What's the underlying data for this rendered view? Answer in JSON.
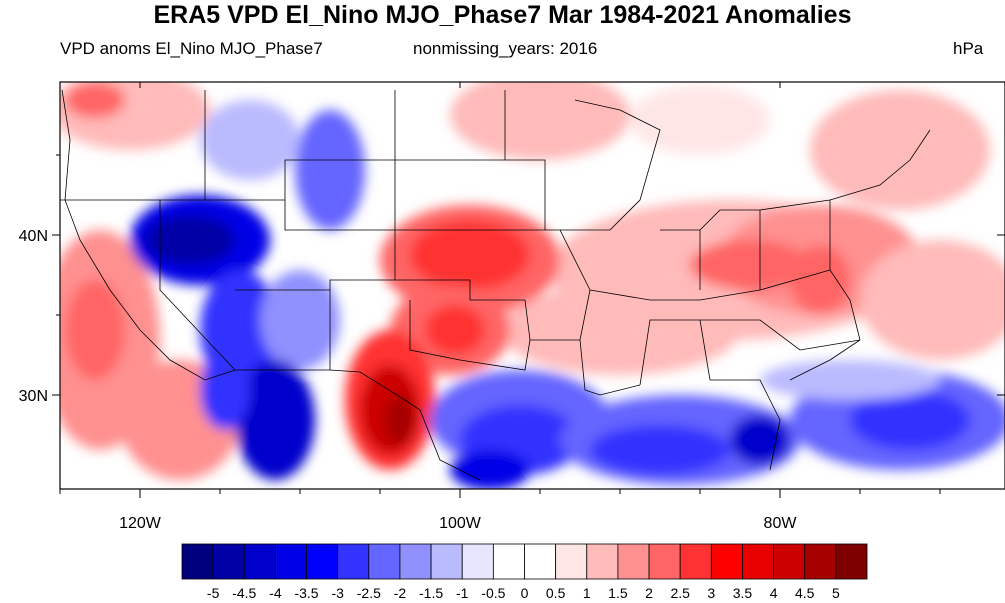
{
  "title": "ERA5 VPD El_Nino MJO_Phase7 Mar 1984-2021 Anomalies",
  "left_subtitle": "VPD anoms El_Nino MJO_Phase7",
  "center_subtitle": "nonmissing_years: 2016",
  "units": "hPa",
  "lat_labels": [
    "40N",
    "30N"
  ],
  "lon_labels": [
    "120W",
    "100W",
    "80W"
  ],
  "colorbar": {
    "labels": [
      "-5",
      "-4.5",
      "-4",
      "-3.5",
      "-3",
      "-2.5",
      "-2",
      "-1.5",
      "-1",
      "-0.5",
      "0",
      "0.5",
      "1",
      "1.5",
      "2",
      "2.5",
      "3",
      "3.5",
      "4",
      "4.5",
      "5"
    ],
    "colors": [
      "#00007f",
      "#0000a6",
      "#0000cc",
      "#0000e6",
      "#0000ff",
      "#3333ff",
      "#6565ff",
      "#9090ff",
      "#babaff",
      "#e6e6ff",
      "#ffffff",
      "#ffffff",
      "#ffe6e6",
      "#ffbaba",
      "#ff9090",
      "#ff6565",
      "#ff3333",
      "#ff0000",
      "#e60000",
      "#cc0000",
      "#a60000",
      "#7f0000"
    ]
  }
}
